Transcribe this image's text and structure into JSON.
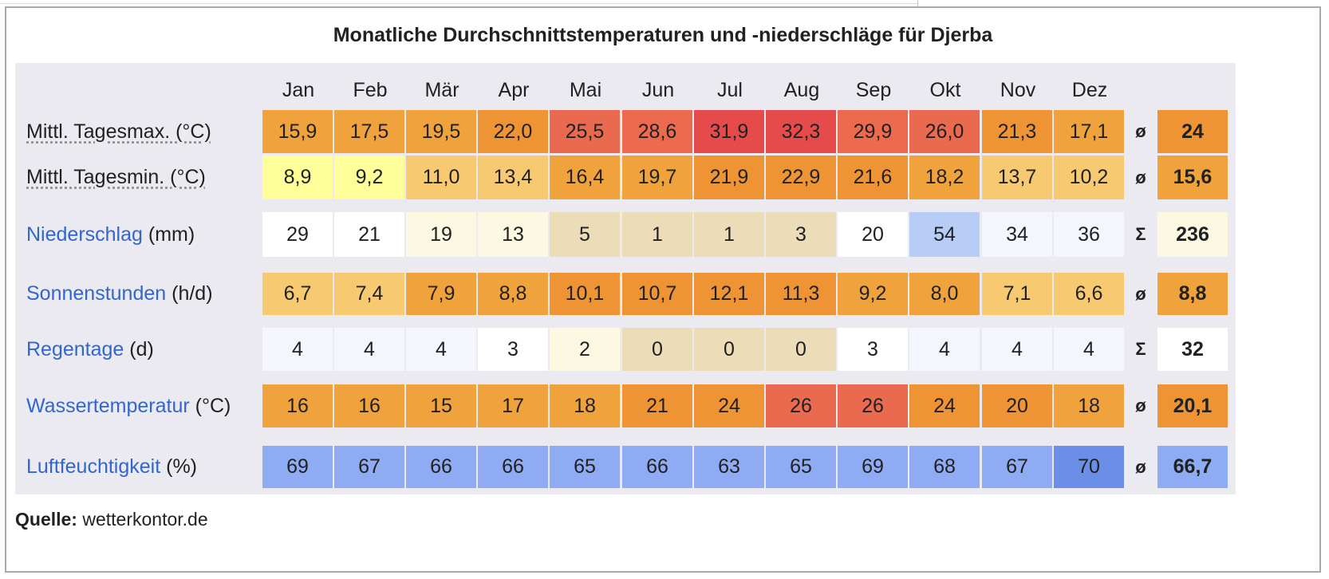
{
  "title": "Monatliche Durchschnittstemperaturen und -niederschläge für Djerba",
  "months": [
    "Jan",
    "Feb",
    "Mär",
    "Apr",
    "Mai",
    "Jun",
    "Jul",
    "Aug",
    "Sep",
    "Okt",
    "Nov",
    "Dez"
  ],
  "rows": [
    {
      "id": "tagesmax",
      "label_link": "",
      "label_plain": "Mittl. Tagesmax. (°C)",
      "values": [
        "15,9",
        "17,5",
        "19,5",
        "22,0",
        "25,5",
        "28,6",
        "31,9",
        "32,3",
        "29,9",
        "26,0",
        "21,3",
        "17,1"
      ],
      "colors": [
        "#f0a23c",
        "#f0a23c",
        "#f0a23c",
        "#ef9434",
        "#ea6a4f",
        "#ec6a4e",
        "#e64b4b",
        "#e64b4b",
        "#ec6a4e",
        "#ea6a4f",
        "#ef9434",
        "#f0a23c"
      ],
      "symbol": "ø",
      "total": "24",
      "total_color": "#ef9434"
    },
    {
      "id": "tagesmin",
      "label_link": "",
      "label_plain": "Mittl. Tagesmin. (°C)",
      "values": [
        "8,9",
        "9,2",
        "11,0",
        "13,4",
        "16,4",
        "19,7",
        "21,9",
        "22,9",
        "21,6",
        "18,2",
        "13,7",
        "10,2"
      ],
      "colors": [
        "#ffff99",
        "#ffff99",
        "#f7ca72",
        "#f7ca72",
        "#f0a23c",
        "#f0a23c",
        "#ef9434",
        "#ef9434",
        "#ef9434",
        "#f0a23c",
        "#f7ca72",
        "#f7ca72"
      ],
      "symbol": "ø",
      "total": "15,6",
      "total_color": "#f0a23c"
    },
    {
      "id": "niederschlag",
      "label_link": "Niederschlag",
      "label_plain": " (mm)",
      "values": [
        "29",
        "21",
        "19",
        "13",
        "5",
        "1",
        "1",
        "3",
        "20",
        "54",
        "34",
        "36"
      ],
      "colors": [
        "#ffffff",
        "#ffffff",
        "#fdf8e1",
        "#fdf8e1",
        "#ecdcb8",
        "#ecdcb8",
        "#ecdcb8",
        "#ecdcb8",
        "#ffffff",
        "#b8cdf5",
        "#f3f6fd",
        "#f3f6fd"
      ],
      "symbol": "Σ",
      "total": "236",
      "total_color": "#fdf8e1"
    },
    {
      "id": "sonnenstunden",
      "label_link": "Sonnenstunden",
      "label_plain": " (h/d)",
      "values": [
        "6,7",
        "7,4",
        "7,9",
        "8,8",
        "10,1",
        "10,7",
        "12,1",
        "11,3",
        "9,2",
        "8,0",
        "7,1",
        "6,6"
      ],
      "colors": [
        "#f7ca72",
        "#f7ca72",
        "#f0a23c",
        "#f0a23c",
        "#ef9434",
        "#ef9434",
        "#ef9434",
        "#ef9434",
        "#f0a23c",
        "#f0a23c",
        "#f7ca72",
        "#f7ca72"
      ],
      "symbol": "ø",
      "total": "8,8",
      "total_color": "#f0a23c"
    },
    {
      "id": "regentage",
      "label_link": "Regentage",
      "label_plain": " (d)",
      "values": [
        "4",
        "4",
        "4",
        "3",
        "2",
        "0",
        "0",
        "0",
        "3",
        "4",
        "4",
        "4"
      ],
      "colors": [
        "#f3f6fd",
        "#f3f6fd",
        "#f3f6fd",
        "#ffffff",
        "#fdf8e1",
        "#ecdcb8",
        "#ecdcb8",
        "#ecdcb8",
        "#ffffff",
        "#f3f6fd",
        "#f3f6fd",
        "#f3f6fd"
      ],
      "symbol": "Σ",
      "total": "32",
      "total_color": "#ffffff"
    },
    {
      "id": "wassertemperatur",
      "label_link": "Wassertemperatur",
      "label_plain": " (°C)",
      "values": [
        "16",
        "16",
        "15",
        "17",
        "18",
        "21",
        "24",
        "26",
        "26",
        "24",
        "20",
        "18"
      ],
      "colors": [
        "#f0a23c",
        "#f0a23c",
        "#f0a23c",
        "#f0a23c",
        "#f0a23c",
        "#ef9434",
        "#ef9434",
        "#ea6a4f",
        "#ea6a4f",
        "#ef9434",
        "#ef9434",
        "#f0a23c"
      ],
      "symbol": "ø",
      "total": "20,1",
      "total_color": "#ef9434"
    },
    {
      "id": "luftfeuchtigkeit",
      "label_link": "Luftfeuchtigkeit",
      "label_plain": " (%)",
      "values": [
        "69",
        "67",
        "66",
        "66",
        "65",
        "66",
        "63",
        "65",
        "69",
        "68",
        "67",
        "70"
      ],
      "colors": [
        "#8eabf4",
        "#8eabf4",
        "#8eabf4",
        "#8eabf4",
        "#8eabf4",
        "#8eabf4",
        "#8eabf4",
        "#8eabf4",
        "#8eabf4",
        "#8eabf4",
        "#8eabf4",
        "#6b8fe6"
      ],
      "symbol": "ø",
      "total": "66,7",
      "total_color": "#8eabf4"
    }
  ],
  "source": {
    "label": "Quelle:",
    "text": " wetterkontor.de"
  },
  "colors": {
    "panel_bg": "#eaeaf0",
    "link": "#3366cc",
    "border": "#a9a9a9"
  }
}
